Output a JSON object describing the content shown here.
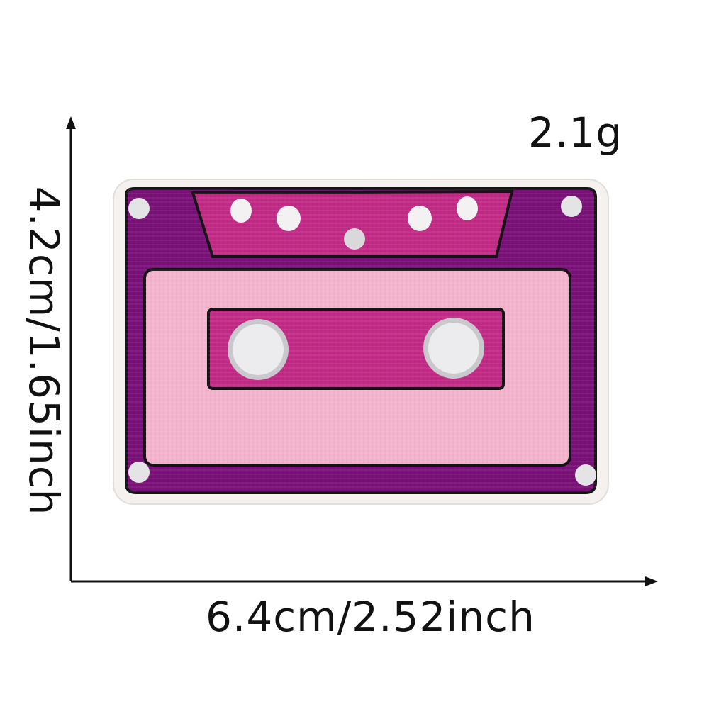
{
  "product": {
    "weight": "2.1g",
    "width": "6.4cm/2.52inch",
    "height": "4.2cm/1.65inch"
  },
  "icons": {
    "patch": "cassette-tape-patch-icon",
    "vertical_arrow": "arrow-up-icon",
    "horizontal_arrow": "arrow-right-icon"
  },
  "colors": {
    "border": "#f4f1ee",
    "dark_purple": "#7a1178",
    "magenta": "#c22a86",
    "pink": "#f4b4ce",
    "reel": "#e4e4e6",
    "outline": "#141414"
  }
}
